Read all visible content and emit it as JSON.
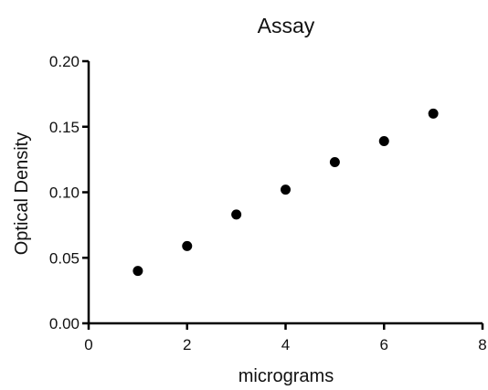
{
  "chart_data": {
    "type": "scatter",
    "title": "Assay",
    "xlabel": "micrograms",
    "ylabel": "Optical Density",
    "xlim": [
      0,
      8
    ],
    "ylim": [
      0,
      0.2
    ],
    "x_ticks": [
      "0",
      "2",
      "4",
      "6",
      "8"
    ],
    "y_ticks": [
      "0.00",
      "0.05",
      "0.10",
      "0.15",
      "0.20"
    ],
    "grid": false,
    "legend": "none",
    "point_color": "#000000",
    "series": [
      {
        "x": [
          1,
          2,
          3,
          4,
          5,
          6,
          7
        ],
        "y": [
          0.04,
          0.059,
          0.083,
          0.102,
          0.123,
          0.139,
          0.16
        ]
      }
    ]
  }
}
